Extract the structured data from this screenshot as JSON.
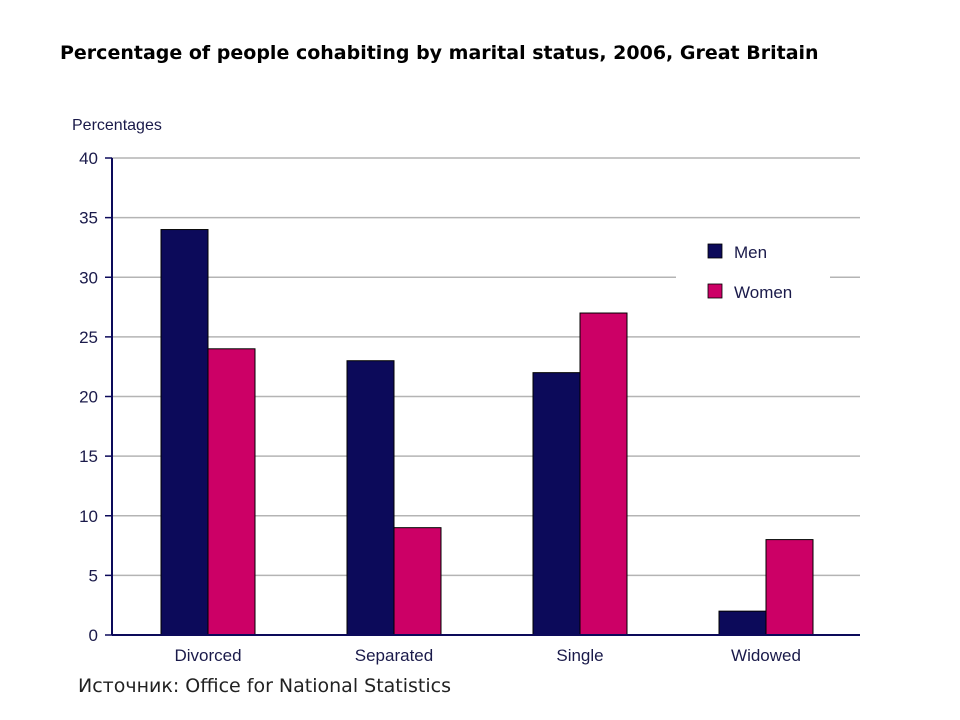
{
  "source_note": "Источник: Office for National Statistics",
  "chart_data": {
    "type": "bar",
    "title": "Percentage of people cohabiting by marital status, 2006, Great Britain",
    "xlabel": "",
    "ylabel": "Percentages",
    "ylim": [
      0,
      40
    ],
    "yticks": [
      0,
      5,
      10,
      15,
      20,
      25,
      30,
      35,
      40
    ],
    "grid": true,
    "legend_position": "top-right",
    "categories": [
      "Divorced",
      "Separated",
      "Single",
      "Widowed"
    ],
    "series": [
      {
        "name": "Men",
        "color": "#0c0a5a",
        "values": [
          34,
          23,
          22,
          2
        ]
      },
      {
        "name": "Women",
        "color": "#cc0066",
        "values": [
          24,
          9,
          27,
          8
        ]
      }
    ],
    "colors": {
      "grid": "#b4b4b4",
      "axis": "#0c0a5a",
      "text": "#1a1a4a"
    }
  }
}
